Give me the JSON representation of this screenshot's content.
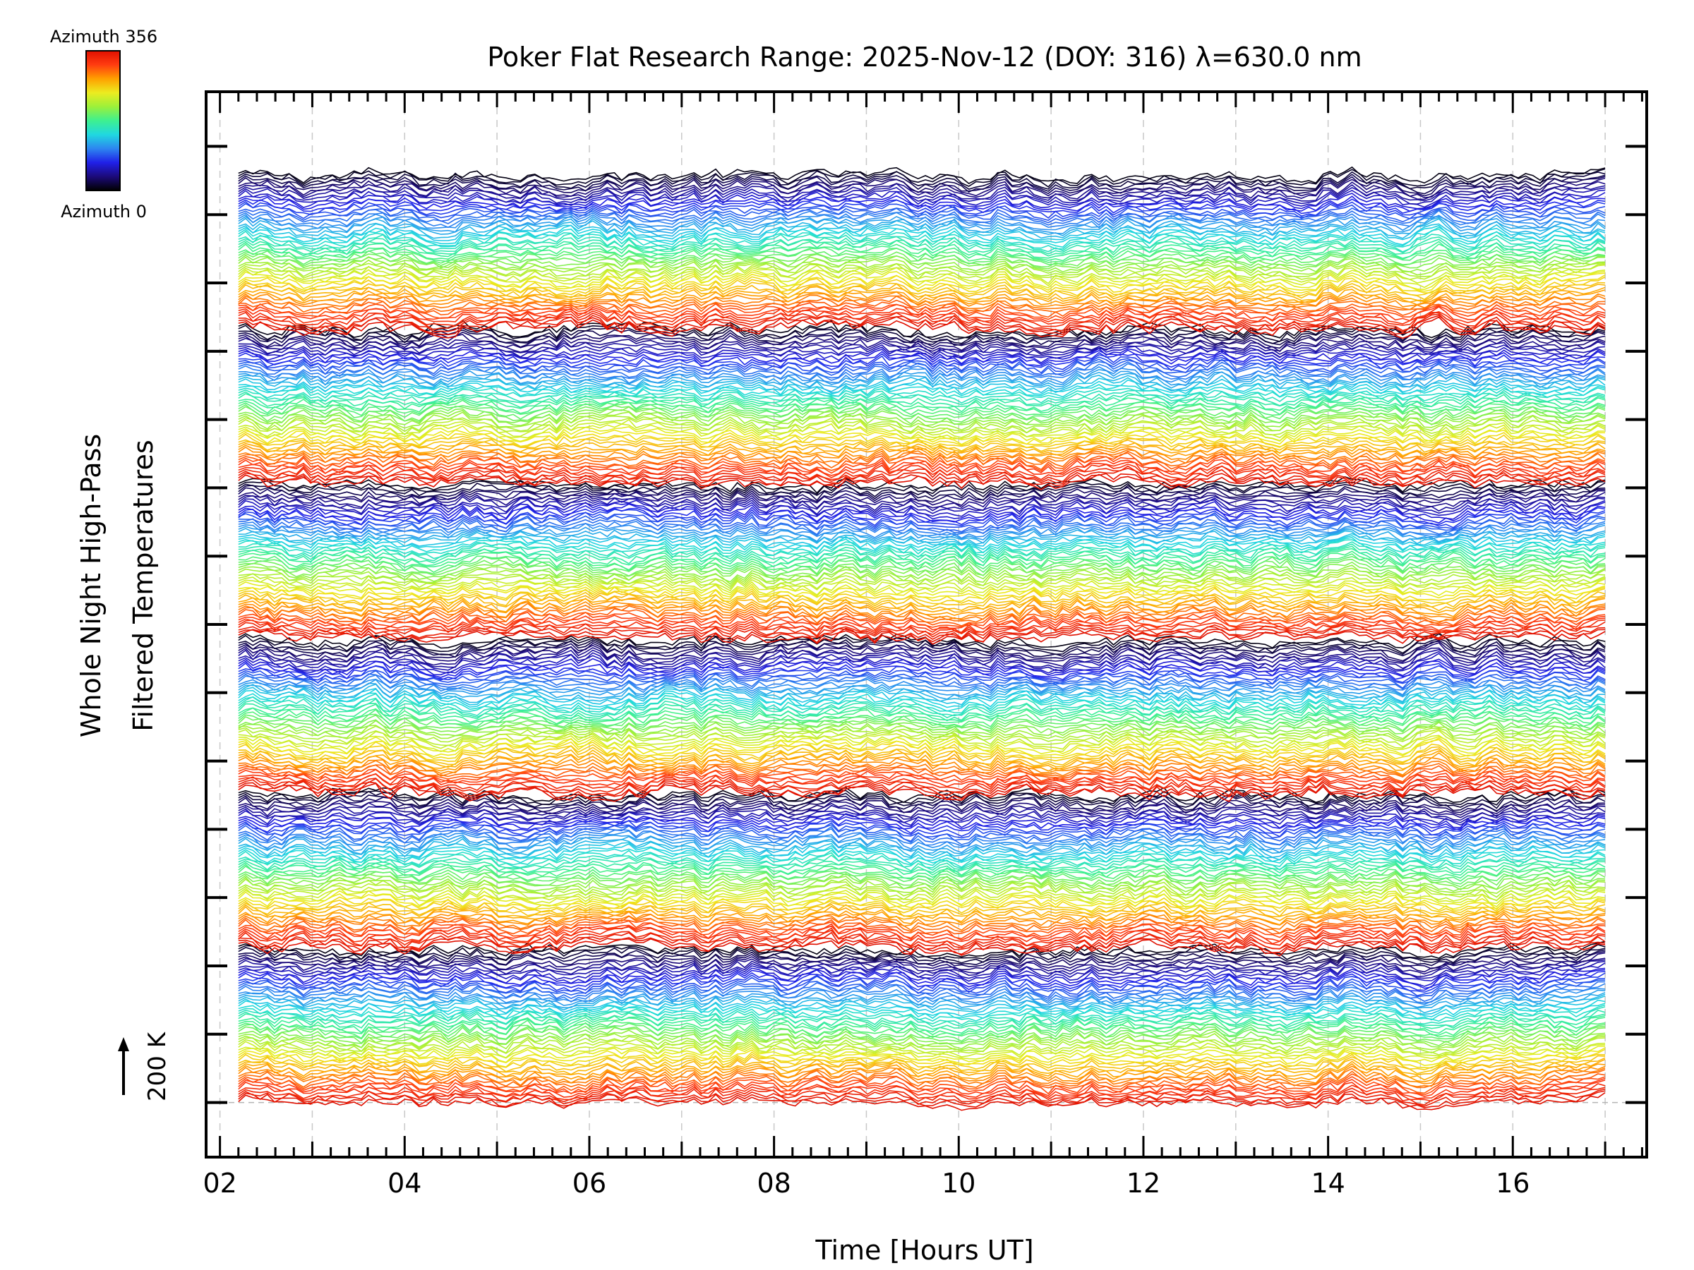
{
  "chart_data": {
    "type": "line",
    "title": "Poker Flat Research Range: 2025-Nov-12 (DOY: 316) λ=630.0 nm",
    "xlabel": "Time [Hours UT]",
    "ylabel_line1": "Whole Night High-Pass",
    "ylabel_line2": "Filtered Temperatures",
    "scale_label": "200 K",
    "x_range": [
      1.85,
      17.45
    ],
    "x_ticks": [
      2,
      4,
      6,
      8,
      10,
      12,
      14,
      16
    ],
    "x_tick_labels": [
      "02",
      "04",
      "06",
      "08",
      "10",
      "12",
      "14",
      "16"
    ],
    "x_start": 2.2,
    "x_end": 17.0,
    "y_range": [
      0,
      3900
    ],
    "y_major_ticks": [
      200,
      450,
      700,
      950,
      1200,
      1450,
      1700,
      1950,
      2200,
      2450,
      2700,
      2950,
      3200,
      3450,
      3700
    ],
    "baseline_value": 200,
    "trace_spacing_K": 9.3,
    "num_traces": 366,
    "colorbar": {
      "top_label": "Azimuth 356",
      "bottom_label": "Azimuth 0",
      "azimuth_min": 0,
      "azimuth_max": 356,
      "colormap": [
        "#000000",
        "#1c0a7a",
        "#2020e8",
        "#2d86f0",
        "#20d8e0",
        "#3ef090",
        "#9cf03a",
        "#ecec20",
        "#ffa000",
        "#ff3c10",
        "#e01000"
      ]
    },
    "grid": true,
    "series_description": "Stacked high-pass filtered temperature traces, one per azimuth, offset vertically"
  }
}
